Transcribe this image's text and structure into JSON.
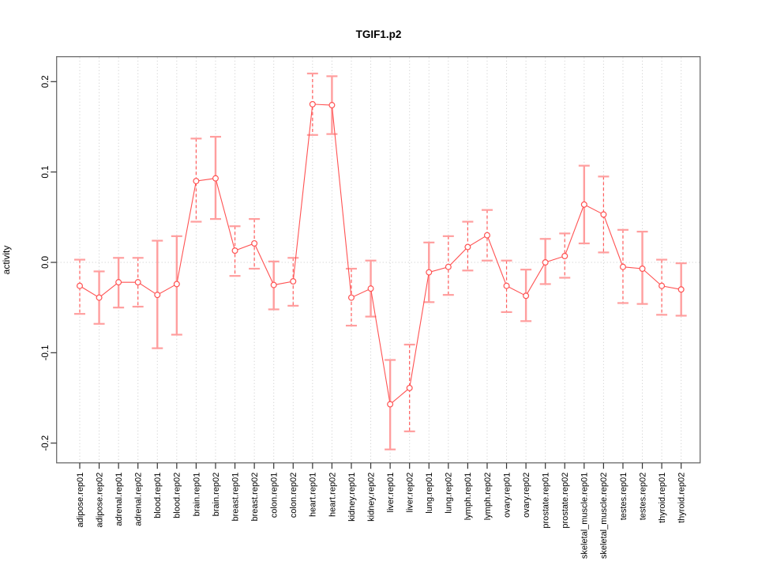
{
  "figure": {
    "title": "TGIF1.p2",
    "ylabel": "activity"
  },
  "colors": {
    "series_line": "#ff5252",
    "marker_stroke": "#ff5252",
    "marker_fill": "#ffffff",
    "error_bar_solid": "#ff9e9e",
    "error_bar_dashed": "#ff5c5c",
    "grid": "#c9c9c9",
    "frame": "#6b6b6b",
    "tick": "#333333",
    "text": "#000000",
    "background": "#ffffff"
  },
  "chart_data": {
    "type": "line",
    "title": "TGIF1.p2",
    "xlabel": "",
    "ylabel": "activity",
    "ylim": [
      -0.222,
      0.228
    ],
    "yticks": [
      -0.2,
      -0.1,
      0.0,
      0.1,
      0.2
    ],
    "grid": "vertical dotted line at each category; dotted horizontal line at y=0",
    "legend": "none",
    "marker": "open-circle",
    "x_tick_label_rotation": 90,
    "categories": [
      "adipose.rep01",
      "adipose.rep02",
      "adrenal.rep01",
      "adrenal.rep02",
      "blood.rep01",
      "blood.rep02",
      "brain.rep01",
      "brain.rep02",
      "breast.rep01",
      "breast.rep02",
      "colon.rep01",
      "colon.rep02",
      "heart.rep01",
      "heart.rep02",
      "kidney.rep01",
      "kidney.rep02",
      "liver.rep01",
      "liver.rep02",
      "lung.rep01",
      "lung.rep02",
      "lymph.rep01",
      "lymph.rep02",
      "ovary.rep01",
      "ovary.rep02",
      "prostate.rep01",
      "prostate.rep02",
      "skeletal_muscle.rep01",
      "skeletal_muscle.rep02",
      "testes.rep01",
      "testes.rep02",
      "thyroid.rep01",
      "thyroid.rep02"
    ],
    "series": [
      {
        "name": "activity",
        "values": [
          -0.026,
          -0.039,
          -0.022,
          -0.022,
          -0.036,
          -0.024,
          0.09,
          0.093,
          0.013,
          0.021,
          -0.025,
          -0.021,
          0.175,
          0.174,
          -0.039,
          -0.029,
          -0.157,
          -0.139,
          -0.011,
          -0.005,
          0.017,
          0.03,
          -0.026,
          -0.037,
          0.0,
          0.007,
          0.064,
          0.053,
          -0.005,
          -0.007,
          -0.026,
          -0.03
        ],
        "error_low": [
          -0.057,
          -0.068,
          -0.05,
          -0.049,
          -0.095,
          -0.08,
          0.045,
          0.048,
          -0.015,
          -0.007,
          -0.052,
          -0.048,
          0.141,
          0.142,
          -0.07,
          -0.06,
          -0.207,
          -0.187,
          -0.044,
          -0.036,
          -0.009,
          0.002,
          -0.055,
          -0.065,
          -0.024,
          -0.017,
          0.021,
          0.011,
          -0.045,
          -0.046,
          -0.058,
          -0.059
        ],
        "error_high": [
          0.003,
          -0.01,
          0.005,
          0.005,
          0.024,
          0.029,
          0.137,
          0.139,
          0.04,
          0.048,
          0.001,
          0.005,
          0.209,
          0.206,
          -0.007,
          0.002,
          -0.108,
          -0.091,
          0.022,
          0.029,
          0.045,
          0.058,
          0.002,
          -0.008,
          0.026,
          0.032,
          0.107,
          0.095,
          0.036,
          0.034,
          0.003,
          -0.001
        ],
        "error_bar_styles": [
          "dashed",
          "solid",
          "solid",
          "dashed",
          "solid",
          "solid",
          "dashed",
          "solid",
          "dashed",
          "dashed",
          "solid",
          "dashed",
          "dashed",
          "solid",
          "dashed",
          "solid",
          "solid",
          "dashed",
          "solid",
          "dashed",
          "dashed",
          "dashed",
          "dashed",
          "solid",
          "solid",
          "dashed",
          "solid",
          "dashed",
          "dashed",
          "solid",
          "dashed",
          "solid"
        ]
      }
    ]
  }
}
